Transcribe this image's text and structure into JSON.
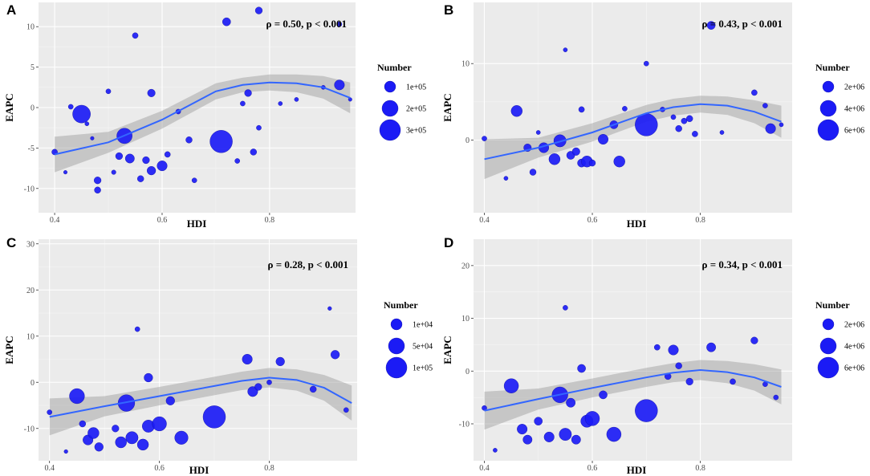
{
  "chart_data": [
    {
      "panel": "A",
      "type": "scatter",
      "xlabel": "HDI",
      "ylabel": "EAPC",
      "xlim": [
        0.37,
        0.96
      ],
      "ylim": [
        -13,
        13
      ],
      "xticks": [
        0.4,
        0.6,
        0.8
      ],
      "xtick_labels": [
        "0.4",
        "0.6",
        "0.8"
      ],
      "yticks": [
        -10,
        -5,
        0,
        5,
        10
      ],
      "ytick_labels": [
        "-10",
        "-5",
        "0",
        "5",
        "10"
      ],
      "annotation": "ρ = 0.50, p < 0.001",
      "legend": {
        "title": "Number",
        "keys": [
          {
            "label": "1e+05",
            "value": 100000
          },
          {
            "label": "2e+05",
            "value": 200000
          },
          {
            "label": "3e+05",
            "value": 300000
          }
        ]
      },
      "size_max": 300000,
      "smooth": {
        "x": [
          0.4,
          0.5,
          0.6,
          0.7,
          0.75,
          0.8,
          0.85,
          0.9,
          0.95
        ],
        "y": [
          -5.8,
          -4.3,
          -1.5,
          2.0,
          2.8,
          3.1,
          3.0,
          2.5,
          1.2
        ],
        "se": [
          2.2,
          1.3,
          1.1,
          1.0,
          0.9,
          1.0,
          1.1,
          1.4,
          1.9
        ]
      },
      "points": [
        {
          "x": 0.4,
          "y": -5.5,
          "n": 20000
        },
        {
          "x": 0.42,
          "y": -8.0,
          "n": 8000
        },
        {
          "x": 0.43,
          "y": 0.1,
          "n": 15000
        },
        {
          "x": 0.45,
          "y": -0.8,
          "n": 190000
        },
        {
          "x": 0.46,
          "y": -2.0,
          "n": 10000
        },
        {
          "x": 0.47,
          "y": -3.8,
          "n": 8000
        },
        {
          "x": 0.48,
          "y": -9.0,
          "n": 30000
        },
        {
          "x": 0.48,
          "y": -10.2,
          "n": 25000
        },
        {
          "x": 0.5,
          "y": 2.0,
          "n": 15000
        },
        {
          "x": 0.51,
          "y": -8.0,
          "n": 12000
        },
        {
          "x": 0.52,
          "y": -6.0,
          "n": 30000
        },
        {
          "x": 0.53,
          "y": -3.5,
          "n": 140000
        },
        {
          "x": 0.54,
          "y": -6.3,
          "n": 50000
        },
        {
          "x": 0.55,
          "y": 8.9,
          "n": 20000
        },
        {
          "x": 0.56,
          "y": -8.8,
          "n": 25000
        },
        {
          "x": 0.57,
          "y": -6.5,
          "n": 30000
        },
        {
          "x": 0.58,
          "y": 1.8,
          "n": 35000
        },
        {
          "x": 0.58,
          "y": -7.8,
          "n": 45000
        },
        {
          "x": 0.6,
          "y": -7.2,
          "n": 60000
        },
        {
          "x": 0.61,
          "y": -5.8,
          "n": 20000
        },
        {
          "x": 0.63,
          "y": -0.5,
          "n": 15000
        },
        {
          "x": 0.65,
          "y": -4.0,
          "n": 25000
        },
        {
          "x": 0.66,
          "y": -9.0,
          "n": 15000
        },
        {
          "x": 0.71,
          "y": -4.2,
          "n": 300000
        },
        {
          "x": 0.72,
          "y": 10.6,
          "n": 40000
        },
        {
          "x": 0.74,
          "y": -6.6,
          "n": 15000
        },
        {
          "x": 0.75,
          "y": 0.5,
          "n": 15000
        },
        {
          "x": 0.76,
          "y": 1.8,
          "n": 30000
        },
        {
          "x": 0.77,
          "y": -5.5,
          "n": 25000
        },
        {
          "x": 0.78,
          "y": 12.0,
          "n": 30000
        },
        {
          "x": 0.78,
          "y": -2.5,
          "n": 15000
        },
        {
          "x": 0.82,
          "y": 0.5,
          "n": 10000
        },
        {
          "x": 0.85,
          "y": 1.0,
          "n": 10000
        },
        {
          "x": 0.9,
          "y": 2.5,
          "n": 10000
        },
        {
          "x": 0.93,
          "y": 10.3,
          "n": 15000
        },
        {
          "x": 0.93,
          "y": 2.8,
          "n": 60000
        },
        {
          "x": 0.95,
          "y": 1.0,
          "n": 8000
        }
      ]
    },
    {
      "panel": "B",
      "type": "scatter",
      "xlabel": "HDI",
      "ylabel": "EAPC",
      "xlim": [
        0.38,
        0.97
      ],
      "ylim": [
        -9.5,
        18
      ],
      "xticks": [
        0.4,
        0.6,
        0.8
      ],
      "xtick_labels": [
        "0.4",
        "0.6",
        "0.8"
      ],
      "yticks": [
        0,
        10
      ],
      "ytick_labels": [
        "0",
        "10"
      ],
      "annotation": "ρ = 0.43, p < 0.001",
      "legend": {
        "title": "Number",
        "keys": [
          {
            "label": "2e+06",
            "value": 2000000
          },
          {
            "label": "4e+06",
            "value": 4000000
          },
          {
            "label": "6e+06",
            "value": 6000000
          }
        ]
      },
      "size_max": 6000000,
      "smooth": {
        "x": [
          0.4,
          0.5,
          0.6,
          0.7,
          0.75,
          0.8,
          0.85,
          0.9,
          0.95
        ],
        "y": [
          -2.5,
          -1.0,
          1.0,
          3.5,
          4.3,
          4.7,
          4.5,
          3.7,
          2.4
        ],
        "se": [
          2.6,
          1.3,
          1.2,
          1.1,
          1.1,
          1.1,
          1.2,
          1.5,
          2.1
        ]
      },
      "points": [
        {
          "x": 0.4,
          "y": 0.2,
          "n": 300000
        },
        {
          "x": 0.44,
          "y": -5.0,
          "n": 200000
        },
        {
          "x": 0.46,
          "y": 3.8,
          "n": 1500000
        },
        {
          "x": 0.48,
          "y": -1.0,
          "n": 700000
        },
        {
          "x": 0.49,
          "y": -4.2,
          "n": 500000
        },
        {
          "x": 0.5,
          "y": 1.0,
          "n": 200000
        },
        {
          "x": 0.51,
          "y": -1.0,
          "n": 1200000
        },
        {
          "x": 0.53,
          "y": -2.5,
          "n": 1500000
        },
        {
          "x": 0.54,
          "y": -0.1,
          "n": 1800000
        },
        {
          "x": 0.55,
          "y": 11.8,
          "n": 200000
        },
        {
          "x": 0.56,
          "y": -2.0,
          "n": 800000
        },
        {
          "x": 0.57,
          "y": -1.5,
          "n": 700000
        },
        {
          "x": 0.58,
          "y": 4.0,
          "n": 400000
        },
        {
          "x": 0.58,
          "y": -3.0,
          "n": 800000
        },
        {
          "x": 0.59,
          "y": -2.8,
          "n": 1500000
        },
        {
          "x": 0.6,
          "y": -3.0,
          "n": 500000
        },
        {
          "x": 0.62,
          "y": 0.1,
          "n": 1200000
        },
        {
          "x": 0.64,
          "y": 2.0,
          "n": 800000
        },
        {
          "x": 0.65,
          "y": -2.8,
          "n": 1500000
        },
        {
          "x": 0.66,
          "y": 4.1,
          "n": 300000
        },
        {
          "x": 0.7,
          "y": 2.0,
          "n": 6000000
        },
        {
          "x": 0.7,
          "y": 10.0,
          "n": 300000
        },
        {
          "x": 0.73,
          "y": 4.0,
          "n": 300000
        },
        {
          "x": 0.75,
          "y": 3.0,
          "n": 300000
        },
        {
          "x": 0.76,
          "y": 1.5,
          "n": 500000
        },
        {
          "x": 0.77,
          "y": 2.5,
          "n": 400000
        },
        {
          "x": 0.78,
          "y": 2.8,
          "n": 500000
        },
        {
          "x": 0.79,
          "y": 0.8,
          "n": 400000
        },
        {
          "x": 0.82,
          "y": 15.0,
          "n": 800000
        },
        {
          "x": 0.84,
          "y": 1.0,
          "n": 200000
        },
        {
          "x": 0.9,
          "y": 6.2,
          "n": 400000
        },
        {
          "x": 0.92,
          "y": 4.5,
          "n": 300000
        },
        {
          "x": 0.93,
          "y": 1.5,
          "n": 1200000
        },
        {
          "x": 0.95,
          "y": 2.0,
          "n": 200000
        }
      ]
    },
    {
      "panel": "C",
      "type": "scatter",
      "xlabel": "HDI",
      "ylabel": "EAPC",
      "xlim": [
        0.38,
        0.96
      ],
      "ylim": [
        -17,
        31
      ],
      "xticks": [
        0.4,
        0.6,
        0.8
      ],
      "xtick_labels": [
        "0.4",
        "0.6",
        "0.8"
      ],
      "yticks": [
        -10,
        0,
        10,
        20,
        30
      ],
      "ytick_labels": [
        "-10",
        "0",
        "10",
        "20",
        "30"
      ],
      "annotation": "ρ = 0.28, p < 0.001",
      "legend": {
        "title": "Number",
        "keys": [
          {
            "label": "1e+04",
            "value": 10000
          },
          {
            "label": "5e+04",
            "value": 50000
          },
          {
            "label": "1e+05",
            "value": 100000
          }
        ]
      },
      "size_max": 100000,
      "smooth": {
        "x": [
          0.4,
          0.5,
          0.6,
          0.7,
          0.75,
          0.8,
          0.85,
          0.9,
          0.95
        ],
        "y": [
          -7.5,
          -5.2,
          -3.0,
          -0.8,
          0.3,
          1.0,
          0.5,
          -1.2,
          -4.5
        ],
        "se": [
          4.0,
          2.2,
          2.0,
          2.0,
          2.0,
          2.1,
          2.3,
          2.8,
          3.8
        ]
      },
      "points": [
        {
          "x": 0.4,
          "y": -6.5,
          "n": 5000
        },
        {
          "x": 0.43,
          "y": -15.0,
          "n": 3000
        },
        {
          "x": 0.45,
          "y": -3.0,
          "n": 45000
        },
        {
          "x": 0.46,
          "y": -9.0,
          "n": 8000
        },
        {
          "x": 0.47,
          "y": -12.5,
          "n": 20000
        },
        {
          "x": 0.48,
          "y": -11.0,
          "n": 25000
        },
        {
          "x": 0.49,
          "y": -14.0,
          "n": 15000
        },
        {
          "x": 0.52,
          "y": -10.0,
          "n": 10000
        },
        {
          "x": 0.53,
          "y": -13.0,
          "n": 25000
        },
        {
          "x": 0.54,
          "y": -4.5,
          "n": 55000
        },
        {
          "x": 0.55,
          "y": -12.0,
          "n": 30000
        },
        {
          "x": 0.56,
          "y": 11.5,
          "n": 5000
        },
        {
          "x": 0.57,
          "y": -13.5,
          "n": 25000
        },
        {
          "x": 0.58,
          "y": 1.0,
          "n": 15000
        },
        {
          "x": 0.58,
          "y": -9.5,
          "n": 30000
        },
        {
          "x": 0.6,
          "y": -9.0,
          "n": 40000
        },
        {
          "x": 0.62,
          "y": -4.0,
          "n": 15000
        },
        {
          "x": 0.64,
          "y": -12.0,
          "n": 35000
        },
        {
          "x": 0.7,
          "y": -7.5,
          "n": 100000
        },
        {
          "x": 0.76,
          "y": 5.0,
          "n": 20000
        },
        {
          "x": 0.77,
          "y": -2.0,
          "n": 20000
        },
        {
          "x": 0.78,
          "y": -1.0,
          "n": 10000
        },
        {
          "x": 0.8,
          "y": 0.0,
          "n": 5000
        },
        {
          "x": 0.82,
          "y": 4.5,
          "n": 15000
        },
        {
          "x": 0.88,
          "y": -1.5,
          "n": 8000
        },
        {
          "x": 0.91,
          "y": 16.0,
          "n": 3000
        },
        {
          "x": 0.92,
          "y": 6.0,
          "n": 15000
        },
        {
          "x": 0.94,
          "y": -6.0,
          "n": 5000
        }
      ]
    },
    {
      "panel": "D",
      "type": "scatter",
      "xlabel": "HDI",
      "ylabel": "EAPC",
      "xlim": [
        0.38,
        0.97
      ],
      "ylim": [
        -17,
        25
      ],
      "xticks": [
        0.4,
        0.6,
        0.8
      ],
      "xtick_labels": [
        "0.4",
        "0.6",
        "0.8"
      ],
      "yticks": [
        -10,
        0,
        10,
        20
      ],
      "ytick_labels": [
        "-10",
        "0",
        "10",
        "20"
      ],
      "annotation": "ρ = 0.34, p < 0.001",
      "legend": {
        "title": "Number",
        "keys": [
          {
            "label": "2e+06",
            "value": 2000000
          },
          {
            "label": "4e+06",
            "value": 4000000
          },
          {
            "label": "6e+06",
            "value": 6000000
          }
        ]
      },
      "size_max": 6000000,
      "smooth": {
        "x": [
          0.4,
          0.5,
          0.6,
          0.7,
          0.75,
          0.8,
          0.85,
          0.9,
          0.95
        ],
        "y": [
          -7.5,
          -5.3,
          -3.2,
          -1.2,
          -0.3,
          0.2,
          -0.2,
          -1.2,
          -3.0
        ],
        "se": [
          3.6,
          2.0,
          1.8,
          1.8,
          1.8,
          1.9,
          2.1,
          2.5,
          3.3
        ]
      },
      "points": [
        {
          "x": 0.4,
          "y": -7.0,
          "n": 300000
        },
        {
          "x": 0.42,
          "y": -15.0,
          "n": 200000
        },
        {
          "x": 0.45,
          "y": -2.8,
          "n": 2500000
        },
        {
          "x": 0.47,
          "y": -11.0,
          "n": 1200000
        },
        {
          "x": 0.48,
          "y": -13.0,
          "n": 1000000
        },
        {
          "x": 0.5,
          "y": -9.5,
          "n": 800000
        },
        {
          "x": 0.52,
          "y": -12.5,
          "n": 1200000
        },
        {
          "x": 0.54,
          "y": -4.5,
          "n": 3000000
        },
        {
          "x": 0.55,
          "y": -12.0,
          "n": 1800000
        },
        {
          "x": 0.55,
          "y": 12.0,
          "n": 300000
        },
        {
          "x": 0.56,
          "y": -6.0,
          "n": 1000000
        },
        {
          "x": 0.57,
          "y": -13.0,
          "n": 1000000
        },
        {
          "x": 0.58,
          "y": 0.5,
          "n": 800000
        },
        {
          "x": 0.59,
          "y": -9.5,
          "n": 1800000
        },
        {
          "x": 0.6,
          "y": -9.0,
          "n": 2500000
        },
        {
          "x": 0.62,
          "y": -4.5,
          "n": 800000
        },
        {
          "x": 0.64,
          "y": -12.0,
          "n": 2500000
        },
        {
          "x": 0.7,
          "y": -7.5,
          "n": 6000000
        },
        {
          "x": 0.72,
          "y": 4.5,
          "n": 400000
        },
        {
          "x": 0.74,
          "y": -1.0,
          "n": 500000
        },
        {
          "x": 0.75,
          "y": 4.0,
          "n": 1200000
        },
        {
          "x": 0.76,
          "y": 1.0,
          "n": 500000
        },
        {
          "x": 0.78,
          "y": -2.0,
          "n": 600000
        },
        {
          "x": 0.82,
          "y": 4.5,
          "n": 1000000
        },
        {
          "x": 0.86,
          "y": -2.0,
          "n": 400000
        },
        {
          "x": 0.9,
          "y": 5.8,
          "n": 600000
        },
        {
          "x": 0.92,
          "y": -2.5,
          "n": 300000
        },
        {
          "x": 0.94,
          "y": -5.0,
          "n": 300000
        }
      ]
    }
  ],
  "panel_letters": [
    "A",
    "B",
    "C",
    "D"
  ]
}
